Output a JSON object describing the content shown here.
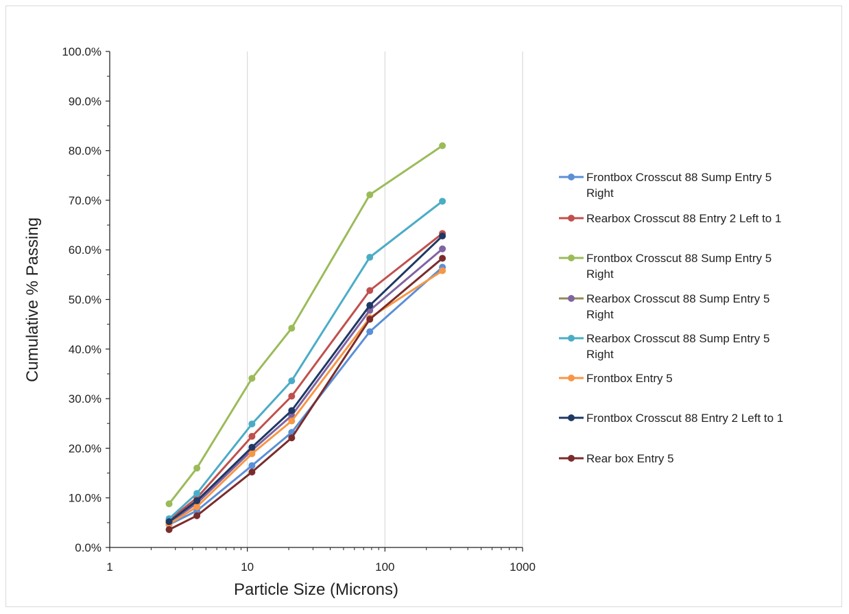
{
  "chart_data": {
    "type": "line",
    "title": "",
    "xlabel": "Particle Size (Microns)",
    "ylabel": "Cumulative % Passing",
    "x_scale": "log",
    "xlim": [
      1,
      1000
    ],
    "ylim": [
      0,
      100
    ],
    "x_ticks": [
      1,
      10,
      100,
      1000
    ],
    "x_tick_labels": [
      "1",
      "10",
      "100",
      "1000"
    ],
    "y_ticks": [
      0,
      10,
      20,
      30,
      40,
      50,
      60,
      70,
      80,
      90,
      100
    ],
    "y_tick_labels": [
      "0.0%",
      "10.0%",
      "20.0%",
      "30.0%",
      "40.0%",
      "50.0%",
      "60.0%",
      "70.0%",
      "80.0%",
      "90.0%",
      "100.0%"
    ],
    "grid": "vertical major only",
    "legend_position": "right",
    "x": [
      2.7,
      4.3,
      10.8,
      21,
      77.6,
      261.5
    ],
    "series": [
      {
        "name": "Frontbox Crosscut 88 Sump Entry 5 Right",
        "color": "#5b8fd6",
        "values": [
          4.6,
          7.4,
          16.5,
          23.2,
          43.5,
          56.5
        ]
      },
      {
        "name": "Rearbox Crosscut 88 Entry 2 Left to 1",
        "color": "#c0504d",
        "values": [
          5.5,
          10.0,
          22.4,
          30.5,
          51.8,
          63.3
        ]
      },
      {
        "name": "Frontbox Crosscut 88 Sump Entry 5 Right",
        "color": "#9bbb59",
        "values": [
          8.8,
          16.0,
          34.1,
          44.2,
          71.1,
          81.0
        ]
      },
      {
        "name": "Rearbox Crosscut 88 Sump Entry 5 Right",
        "color": "#8064a2",
        "values": [
          5.0,
          8.9,
          19.6,
          26.6,
          47.8,
          60.2
        ]
      },
      {
        "name": "Rearbox Crosscut 88 Sump Entry 5 Right",
        "color": "#4bacc6",
        "values": [
          5.8,
          10.9,
          24.9,
          33.6,
          58.5,
          69.8
        ]
      },
      {
        "name": "Frontbox Entry 5",
        "color": "#f79646",
        "values": [
          4.7,
          8.2,
          18.9,
          25.5,
          46.3,
          55.8
        ]
      },
      {
        "name": "Frontbox Crosscut 88 Entry 2 Left to 1",
        "color": "#1f3864",
        "values": [
          5.2,
          9.4,
          20.2,
          27.6,
          48.8,
          62.8
        ]
      },
      {
        "name": "Rear box Entry 5",
        "color": "#7b2c2c",
        "values": [
          3.6,
          6.4,
          15.2,
          22.1,
          46.0,
          58.3
        ]
      }
    ],
    "legend_overlay": {
      "name": "Rearbox Crosscut 88 Sump Entry 5 Right",
      "color": "#948a54"
    }
  }
}
